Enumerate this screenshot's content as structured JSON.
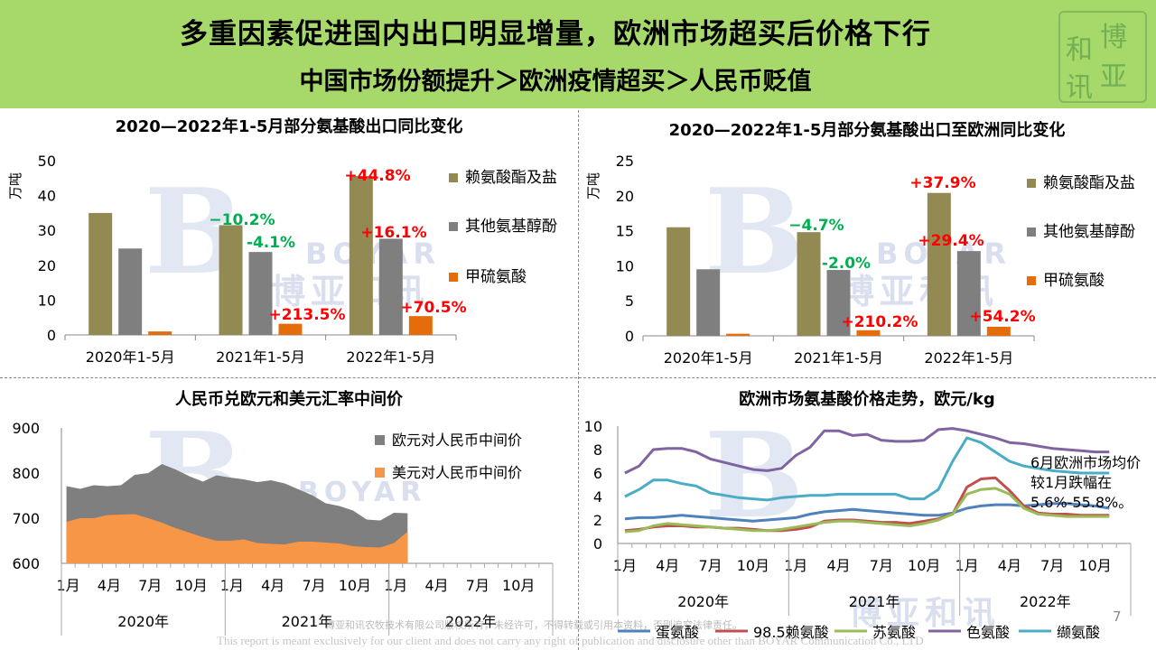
{
  "header": {
    "title": "多重因素促进国内出口明显增量，欧洲市场超买后价格下行",
    "subtitle": "中国市场份额提升＞欧洲疫情超买＞人民币贬值"
  },
  "logo": {
    "chars": [
      "博",
      "亚",
      "和",
      "讯"
    ]
  },
  "watermark": {
    "brand_en": "BOYAR",
    "brand_cn": "博亚和讯"
  },
  "footer": {
    "cn": "博亚和讯农牧技术有限公司版权所有，未经许可，不得转载或引用本资料，否则追究法律责任。",
    "en": "This report is meant exclusively for our client and does not carry any right of publication and disclosure other than BOYAR Communication Co., LTD"
  },
  "page_number": "7",
  "note": "6月欧洲市场均价较1月跌幅在5.6%-55.8%。",
  "colors": {
    "olive": "#938953",
    "gray": "#7f7f7f",
    "orange": "#e46c0a",
    "red": "#ff0000",
    "green": "#00b050",
    "eur_area": "#7f7f7f",
    "usd_area": "#f79646",
    "met": "#4f81bd",
    "lys": "#c0504d",
    "thr": "#9bbb59",
    "trp": "#8064a2",
    "val": "#4bacc6"
  },
  "chart_data": [
    {
      "type": "bar",
      "title": "2020—2022年1-5月部分氨基酸出口同比变化",
      "ylabel": "万吨",
      "ylim": [
        0,
        50
      ],
      "yticks": [
        "0",
        "10",
        "20",
        "30",
        "40",
        "50"
      ],
      "categories": [
        "2020年1-5月",
        "2021年1-5月",
        "2022年1-5月"
      ],
      "series": [
        {
          "name": "赖氨酸酯及盐",
          "values": [
            35,
            31.5,
            45.6
          ]
        },
        {
          "name": "其他氨基醇酚",
          "values": [
            24.8,
            23.8,
            27.6
          ]
        },
        {
          "name": "甲硫氨酸",
          "values": [
            1.0,
            3.2,
            5.4
          ]
        }
      ],
      "annotations": [
        {
          "text": "−10.2%",
          "color": "green"
        },
        {
          "text": "-4.1%",
          "color": "green"
        },
        {
          "text": "+213.5%",
          "color": "red"
        },
        {
          "text": "+44.8%",
          "color": "red"
        },
        {
          "text": "+16.1%",
          "color": "red"
        },
        {
          "text": "+70.5%",
          "color": "red"
        }
      ]
    },
    {
      "type": "bar",
      "title": "2020—2022年1-5月部分氨基酸出口至欧洲同比变化",
      "ylabel": "万吨",
      "ylim": [
        0,
        25
      ],
      "yticks": [
        "0",
        "5",
        "10",
        "15",
        "20",
        "25"
      ],
      "categories": [
        "2020年1-5月",
        "2021年1-5月",
        "2022年1-5月"
      ],
      "series": [
        {
          "name": "赖氨酸酯及盐",
          "values": [
            15.5,
            14.8,
            20.4
          ]
        },
        {
          "name": "其他氨基醇酚",
          "values": [
            9.5,
            9.4,
            12.1
          ]
        },
        {
          "name": "甲硫氨酸",
          "values": [
            0.3,
            0.8,
            1.3
          ]
        }
      ],
      "annotations": [
        {
          "text": "−4.7%",
          "color": "green"
        },
        {
          "text": "-2.0%",
          "color": "green"
        },
        {
          "text": "+210.2%",
          "color": "red"
        },
        {
          "text": "+37.9%",
          "color": "red"
        },
        {
          "text": "+29.4%",
          "color": "red"
        },
        {
          "text": "+54.2%",
          "color": "red"
        }
      ]
    },
    {
      "type": "area",
      "title": "人民币兑欧元和美元汇率中间价",
      "ylim": [
        600,
        900
      ],
      "yticks": [
        "600",
        "700",
        "800",
        "900"
      ],
      "xticks": [
        "1月",
        "4月",
        "7月",
        "10月",
        "1月",
        "4月",
        "7月",
        "10月",
        "1月",
        "4月",
        "7月",
        "10月"
      ],
      "years": [
        "2020年",
        "2021年",
        "2022年"
      ],
      "series": [
        {
          "name": "欧元对人民币中间价",
          "values": [
            771,
            765,
            773,
            771,
            773,
            796,
            800,
            820,
            808,
            793,
            781,
            795,
            790,
            786,
            780,
            784,
            777,
            764,
            751,
            733,
            727,
            717,
            697,
            695,
            712,
            711
          ]
        },
        {
          "name": "美元对人民币中间价",
          "values": [
            692,
            700,
            700,
            707,
            708,
            709,
            700,
            690,
            678,
            668,
            658,
            650,
            650,
            653,
            645,
            643,
            642,
            648,
            648,
            646,
            644,
            638,
            636,
            635,
            645,
            670
          ]
        }
      ]
    },
    {
      "type": "line",
      "title": "欧洲市场氨基酸价格走势，欧元/kg",
      "ylim": [
        0,
        10
      ],
      "yticks": [
        "0",
        "2",
        "4",
        "6",
        "8",
        "10"
      ],
      "xticks": [
        "1月",
        "4月",
        "7月",
        "10月",
        "1月",
        "4月",
        "7月",
        "10月",
        "1月",
        "4月",
        "7月",
        "10月"
      ],
      "years": [
        "2020年",
        "2021年",
        "2022年"
      ],
      "series": [
        {
          "name": "蛋氨酸",
          "values": [
            2.1,
            2.2,
            2.2,
            2.3,
            2.4,
            2.3,
            2.2,
            2.1,
            2.0,
            1.9,
            2.0,
            2.1,
            2.2,
            2.5,
            2.7,
            2.8,
            2.9,
            2.8,
            2.7,
            2.6,
            2.5,
            2.4,
            2.4,
            2.6,
            3.0,
            3.2,
            3.3,
            3.3,
            3.2,
            3.3,
            3.4,
            3.4,
            3.3,
            3.2,
            3.0
          ]
        },
        {
          "name": "98.5赖氨酸",
          "values": [
            1.1,
            1.2,
            1.4,
            1.5,
            1.5,
            1.4,
            1.4,
            1.3,
            1.3,
            1.2,
            1.1,
            1.1,
            1.2,
            1.4,
            1.9,
            2.0,
            2.0,
            1.9,
            1.8,
            1.8,
            1.7,
            1.9,
            2.1,
            2.5,
            4.8,
            5.5,
            5.6,
            4.5,
            3.2,
            2.6,
            2.5,
            2.5,
            2.4,
            2.4,
            2.4
          ]
        },
        {
          "name": "苏氨酸",
          "values": [
            1.0,
            1.1,
            1.5,
            1.7,
            1.6,
            1.5,
            1.4,
            1.3,
            1.2,
            1.1,
            1.1,
            1.2,
            1.4,
            1.6,
            1.8,
            1.9,
            1.9,
            1.8,
            1.7,
            1.6,
            1.5,
            1.7,
            2.0,
            2.5,
            4.2,
            4.6,
            4.7,
            4.2,
            3.0,
            2.5,
            2.4,
            2.3,
            2.3,
            2.3,
            2.3
          ]
        },
        {
          "name": "色氨酸",
          "values": [
            6.0,
            6.6,
            8.0,
            8.1,
            8.1,
            7.8,
            7.2,
            6.9,
            6.6,
            6.3,
            6.2,
            6.4,
            7.5,
            8.2,
            9.6,
            9.6,
            9.2,
            9.3,
            8.8,
            8.7,
            8.7,
            8.8,
            9.7,
            9.8,
            9.6,
            9.3,
            9.0,
            8.6,
            8.5,
            8.3,
            8.1,
            8.0,
            7.9,
            7.8,
            7.8
          ]
        },
        {
          "name": "缬氨酸",
          "values": [
            4.0,
            4.6,
            5.4,
            5.4,
            5.1,
            4.9,
            4.3,
            4.1,
            3.9,
            3.8,
            3.7,
            3.9,
            4.0,
            4.1,
            4.1,
            4.2,
            4.2,
            4.2,
            4.2,
            4.2,
            3.8,
            3.8,
            4.6,
            7.0,
            9.0,
            8.6,
            7.8,
            7.0,
            6.6,
            6.4,
            6.2,
            6.1,
            6.0,
            6.0,
            6.0
          ]
        }
      ]
    }
  ]
}
